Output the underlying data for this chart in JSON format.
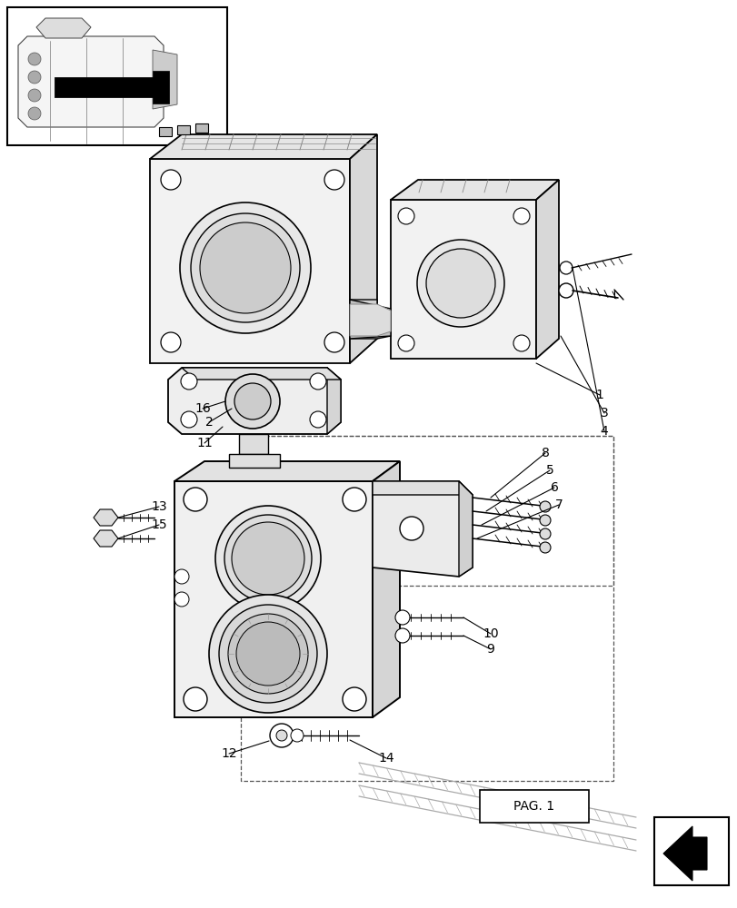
{
  "bg_color": "#ffffff",
  "lc": "#000000",
  "fig_width": 8.12,
  "fig_height": 10.0,
  "dpi": 100,
  "pag_label": "PAG. 1"
}
